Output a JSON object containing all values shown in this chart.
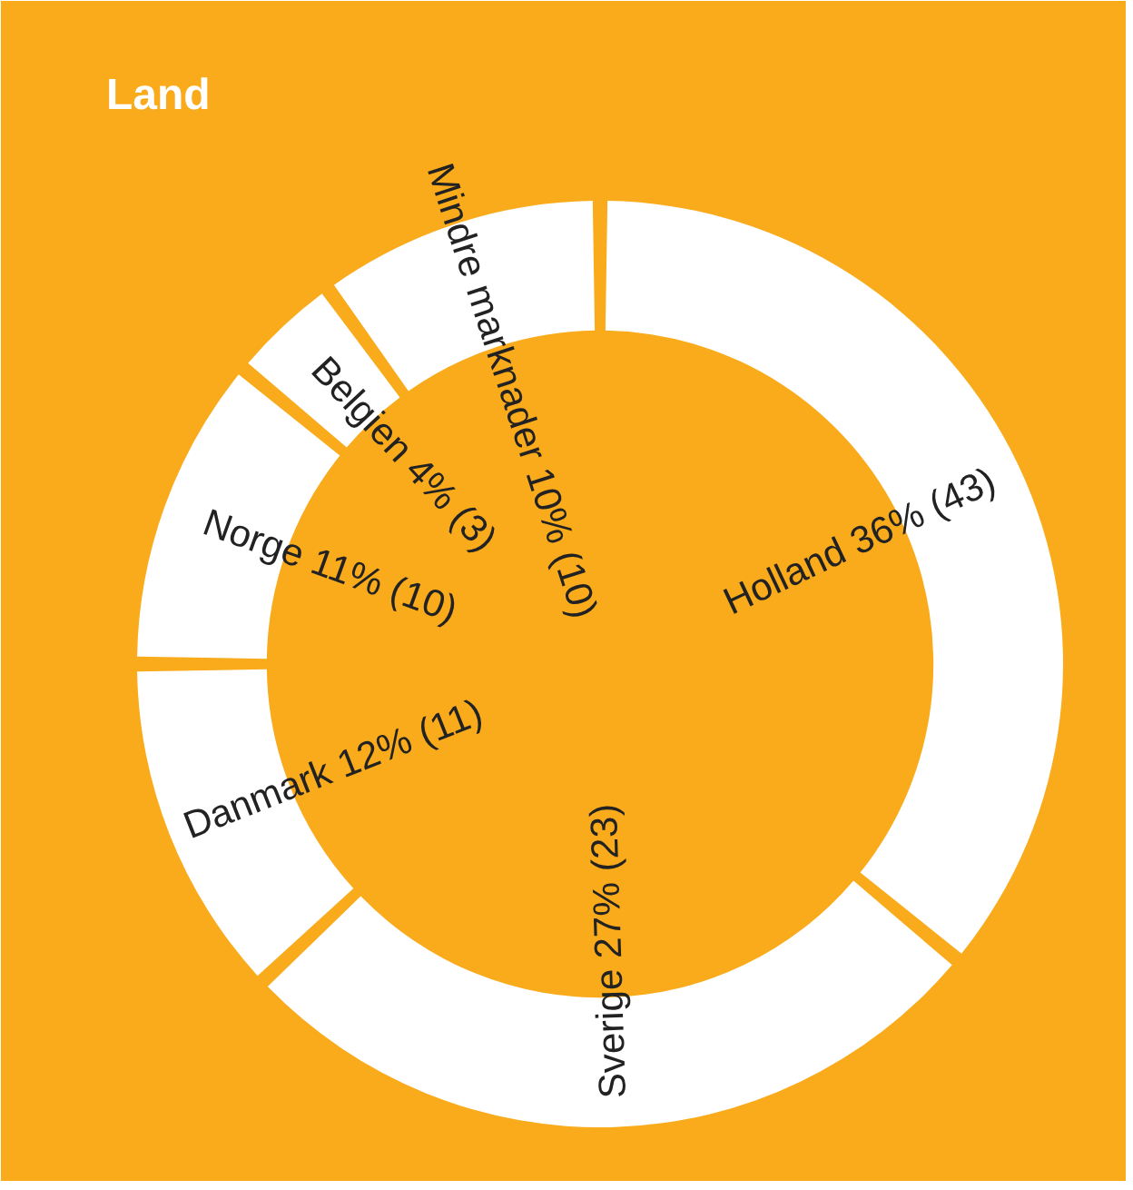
{
  "chart_data": {
    "type": "donut",
    "title": "Land",
    "categories": [
      "Holland",
      "Sverige",
      "Danmark",
      "Norge",
      "Belgien",
      "Mindre marknader"
    ],
    "values": [
      36,
      27,
      12,
      11,
      4,
      10
    ],
    "value_labels": [
      "36% (43)",
      "27% (23)",
      "12% (11)",
      "11% (10)",
      "4% (3)",
      "10% (10)"
    ],
    "colors": [
      "#ffffff",
      "#ffffff",
      "#ffffff",
      "#ffffff",
      "#ffffff",
      "#ffffff"
    ]
  }
}
